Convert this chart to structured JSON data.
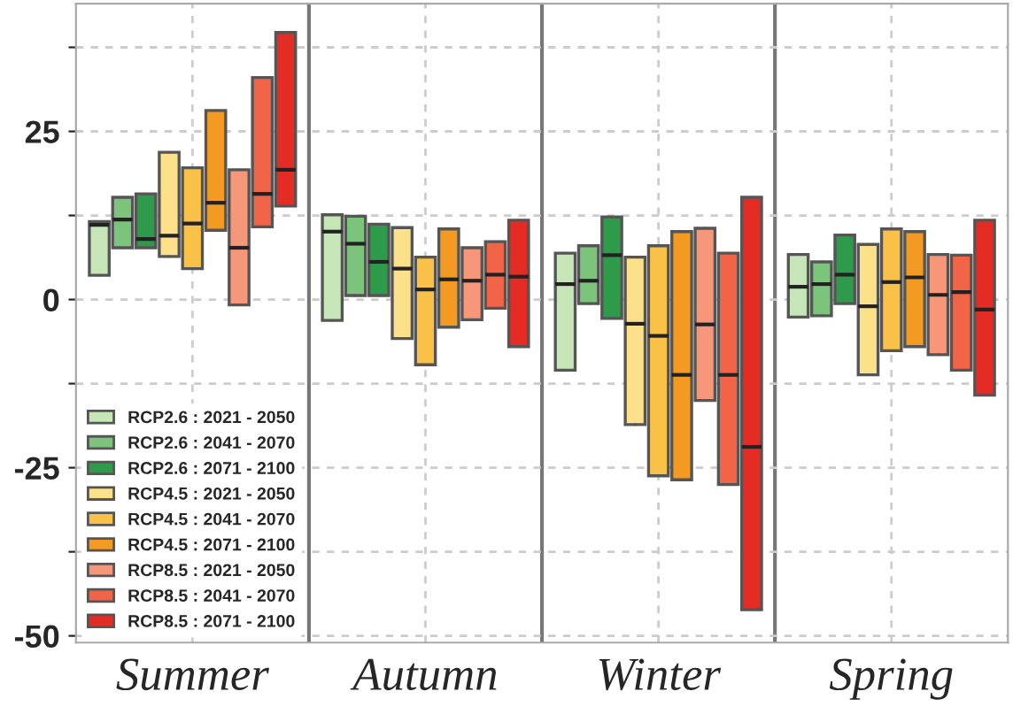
{
  "chart_data": {
    "type": "box",
    "categories": [
      "Summer",
      "Autumn",
      "Winter",
      "Spring"
    ],
    "ylim": [
      -51,
      44
    ],
    "yticks": [
      -50,
      {
        "value": -37.5,
        "label": null
      },
      -25,
      {
        "value": -12.5,
        "label": null
      },
      0,
      {
        "value": 12.5,
        "label": null
      },
      25,
      {
        "value": 37.5,
        "label": null
      }
    ],
    "grid": true,
    "legend": "bottom left",
    "series": [
      {
        "name": "RCP2.6 : 2021 - 2050",
        "color": "#c7e6b8",
        "boxes": [
          {
            "low": 3.6,
            "q1": 3.6,
            "median": 11.1,
            "q3": 11.6,
            "high": 11.6
          },
          {
            "low": -3.1,
            "q1": -3.1,
            "median": 10.1,
            "q3": 12.6,
            "high": 12.6
          },
          {
            "low": -10.5,
            "q1": -10.5,
            "median": 2.3,
            "q3": 6.9,
            "high": 6.9
          },
          {
            "low": -2.6,
            "q1": -2.6,
            "median": 1.9,
            "q3": 6.7,
            "high": 6.7
          }
        ]
      },
      {
        "name": "RCP2.6 : 2041 - 2070",
        "color": "#7cc47c",
        "boxes": [
          {
            "low": 7.7,
            "q1": 7.7,
            "median": 11.9,
            "q3": 15.2,
            "high": 15.2
          },
          {
            "low": 0.6,
            "q1": 0.6,
            "median": 8.3,
            "q3": 12.4,
            "high": 12.4
          },
          {
            "low": -0.6,
            "q1": -0.6,
            "median": 2.8,
            "q3": 8.0,
            "high": 8.0
          },
          {
            "low": -2.4,
            "q1": -2.4,
            "median": 2.3,
            "q3": 5.6,
            "high": 5.6
          }
        ]
      },
      {
        "name": "RCP2.6 : 2071 - 2100",
        "color": "#2e9b4a",
        "boxes": [
          {
            "low": 7.7,
            "q1": 7.7,
            "median": 9.0,
            "q3": 15.7,
            "high": 15.7
          },
          {
            "low": 0.6,
            "q1": 0.6,
            "median": 5.6,
            "q3": 11.2,
            "high": 11.2
          },
          {
            "low": -2.8,
            "q1": -2.8,
            "median": 6.6,
            "q3": 12.3,
            "high": 12.3
          },
          {
            "low": -0.6,
            "q1": -0.6,
            "median": 3.7,
            "q3": 9.6,
            "high": 9.6
          }
        ]
      },
      {
        "name": "RCP4.5 : 2021 - 2050",
        "color": "#fde08a",
        "boxes": [
          {
            "low": 6.4,
            "q1": 6.4,
            "median": 9.5,
            "q3": 21.9,
            "high": 21.9
          },
          {
            "low": -5.8,
            "q1": -5.8,
            "median": 4.6,
            "q3": 10.7,
            "high": 10.7
          },
          {
            "low": -18.6,
            "q1": -18.6,
            "median": -3.6,
            "q3": 6.3,
            "high": 6.3
          },
          {
            "low": -11.2,
            "q1": -11.2,
            "median": -1.0,
            "q3": 8.2,
            "high": 8.2
          }
        ]
      },
      {
        "name": "RCP4.5 : 2041 - 2070",
        "color": "#f9c148",
        "boxes": [
          {
            "low": 4.6,
            "q1": 4.6,
            "median": 11.3,
            "q3": 19.6,
            "high": 19.6
          },
          {
            "low": -9.7,
            "q1": -9.7,
            "median": 1.5,
            "q3": 6.3,
            "high": 6.3
          },
          {
            "low": -26.2,
            "q1": -26.2,
            "median": -5.4,
            "q3": 8.0,
            "high": 8.0
          },
          {
            "low": -7.6,
            "q1": -7.6,
            "median": 2.6,
            "q3": 10.5,
            "high": 10.5
          }
        ]
      },
      {
        "name": "RCP4.5 : 2071 - 2100",
        "color": "#f39a22",
        "boxes": [
          {
            "low": 10.3,
            "q1": 10.3,
            "median": 14.4,
            "q3": 28.1,
            "high": 28.1
          },
          {
            "low": -4.1,
            "q1": -4.1,
            "median": 3.0,
            "q3": 10.5,
            "high": 10.5
          },
          {
            "low": -26.8,
            "q1": -26.8,
            "median": -11.2,
            "q3": 10.1,
            "high": 10.1
          },
          {
            "low": -7.0,
            "q1": -7.0,
            "median": 3.3,
            "q3": 10.1,
            "high": 10.1
          }
        ]
      },
      {
        "name": "RCP8.5 : 2021 - 2050",
        "color": "#f7977a",
        "boxes": [
          {
            "low": -0.8,
            "q1": -0.8,
            "median": 7.7,
            "q3": 19.3,
            "high": 19.3
          },
          {
            "low": -3.0,
            "q1": -3.0,
            "median": 2.8,
            "q3": 7.7,
            "high": 7.7
          },
          {
            "low": -15.0,
            "q1": -15.0,
            "median": -3.7,
            "q3": 10.6,
            "high": 10.6
          },
          {
            "low": -8.2,
            "q1": -8.2,
            "median": 0.7,
            "q3": 6.7,
            "high": 6.7
          }
        ]
      },
      {
        "name": "RCP8.5 : 2041 - 2070",
        "color": "#f26448",
        "boxes": [
          {
            "low": 10.8,
            "q1": 10.8,
            "median": 15.7,
            "q3": 33.0,
            "high": 33.0
          },
          {
            "low": -1.3,
            "q1": -1.3,
            "median": 3.7,
            "q3": 8.6,
            "high": 8.6
          },
          {
            "low": -27.5,
            "q1": -27.5,
            "median": -11.2,
            "q3": 6.9,
            "high": 6.9
          },
          {
            "low": -10.5,
            "q1": -10.5,
            "median": 1.1,
            "q3": 6.6,
            "high": 6.6
          }
        ]
      },
      {
        "name": "RCP8.5 : 2071 - 2100",
        "color": "#e52c24",
        "boxes": [
          {
            "low": 13.9,
            "q1": 13.9,
            "median": 19.3,
            "q3": 39.7,
            "high": 39.7
          },
          {
            "low": -7.0,
            "q1": -7.0,
            "median": 3.4,
            "q3": 11.8,
            "high": 11.8
          },
          {
            "low": -46.1,
            "q1": -46.1,
            "median": -21.9,
            "q3": 15.2,
            "high": 15.2
          },
          {
            "low": -14.2,
            "q1": -14.2,
            "median": -1.5,
            "q3": 11.8,
            "high": 11.8
          }
        ]
      }
    ]
  }
}
